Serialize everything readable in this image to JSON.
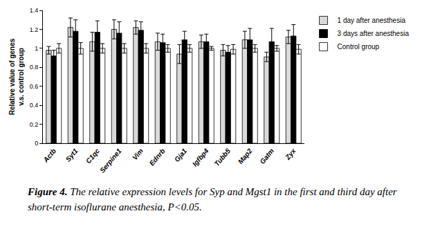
{
  "chart_data": {
    "type": "bar",
    "y_label": "Relative value of genes\nv.s. control group",
    "categories": [
      "Actb",
      "Syt1",
      "C1qc",
      "Serpine1",
      "Vim",
      "Ednrb",
      "Gja1",
      "Igfbp4",
      "Tubb5",
      "Map2",
      "Gatm",
      "Zyx"
    ],
    "series": [
      {
        "name": "1 day after anesthesia",
        "color": "#d9d9d9",
        "values": [
          0.98,
          1.22,
          1.07,
          1.2,
          1.22,
          1.07,
          0.94,
          1.07,
          0.98,
          1.09,
          0.91,
          1.12
        ],
        "errors": [
          0.04,
          0.1,
          0.1,
          0.1,
          0.07,
          0.09,
          0.1,
          0.07,
          0.06,
          0.09,
          0.05,
          0.07
        ]
      },
      {
        "name": "3 days after anesthesia",
        "color": "#000000",
        "values": [
          0.92,
          1.18,
          1.17,
          1.16,
          1.19,
          1.06,
          1.09,
          1.07,
          0.96,
          1.09,
          1.07,
          1.13
        ],
        "errors": [
          0.06,
          0.12,
          0.12,
          0.12,
          0.09,
          0.09,
          0.09,
          0.08,
          0.07,
          0.12,
          0.14,
          0.12
        ]
      },
      {
        "name": "Control group",
        "color": "#ffffff",
        "values": [
          1.0,
          1.0,
          1.0,
          1.0,
          1.0,
          1.0,
          1.0,
          1.0,
          0.99,
          1.0,
          1.0,
          0.99
        ],
        "errors": [
          0.05,
          0.06,
          0.05,
          0.05,
          0.05,
          0.04,
          0.04,
          0.02,
          0.05,
          0.04,
          0.03,
          0.05
        ]
      }
    ],
    "ylim": [
      0,
      1.4
    ],
    "yticks": [
      0,
      0.2,
      0.4,
      0.6,
      0.8,
      1,
      1.2,
      1.4
    ],
    "grid": false,
    "legend": "upper right",
    "caption": {
      "label": "Figure 4.",
      "text": "The relative expression levels for Syp and Mgst1 in the first and third day after short-term isoflurane anesthesia, P<0.05."
    }
  }
}
